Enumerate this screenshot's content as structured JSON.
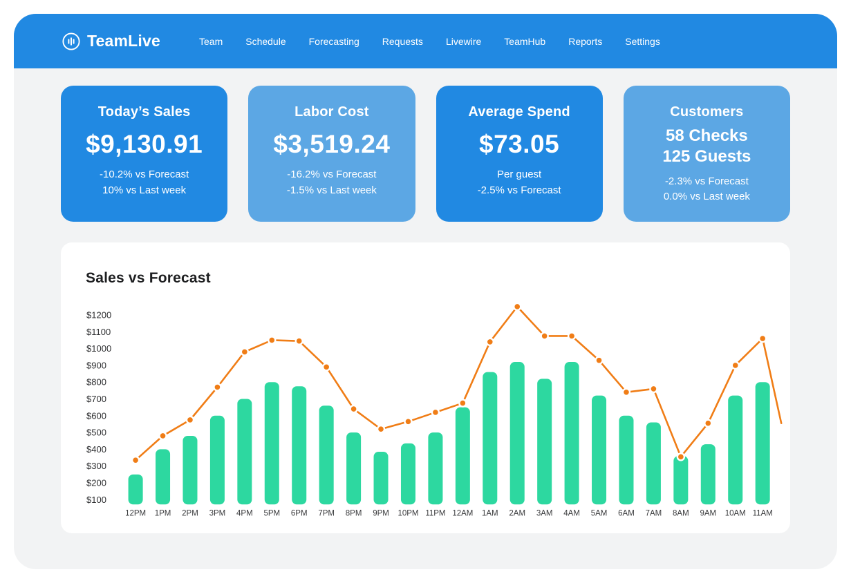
{
  "app": {
    "logo_text": "TeamLive"
  },
  "nav": {
    "items": [
      "Team",
      "Schedule",
      "Forecasting",
      "Requests",
      "Livewire",
      "TeamHub",
      "Reports",
      "Settings"
    ]
  },
  "cards": [
    {
      "title": "Today’s Sales",
      "primary": [
        "$9,130.91"
      ],
      "secondary": [
        "-10.2% vs Forecast",
        "10% vs Last week"
      ],
      "variant": "dark"
    },
    {
      "title": "Labor Cost",
      "primary": [
        "$3,519.24"
      ],
      "secondary": [
        "-16.2% vs Forecast",
        "-1.5% vs Last week"
      ],
      "variant": "light"
    },
    {
      "title": "Average Spend",
      "primary": [
        "$73.05"
      ],
      "secondary": [
        "Per guest",
        "-2.5% vs Forecast"
      ],
      "variant": "dark"
    },
    {
      "title": "Customers",
      "primary": [
        "58 Checks",
        "125 Guests"
      ],
      "secondary": [
        "-2.3% vs Forecast",
        "0.0% vs Last week"
      ],
      "variant": "light"
    }
  ],
  "colors": {
    "nav_blue": "#2189e2",
    "card_dark_blue": "#2189e2",
    "card_light_blue": "#5ca7e4",
    "body_gray": "#f2f3f4",
    "bar_green": "#2dd8a0",
    "line_orange": "#f07d16"
  },
  "chart_data": {
    "type": "bar",
    "title": "Sales vs Forecast",
    "categories": [
      "12PM",
      "1PM",
      "2PM",
      "3PM",
      "4PM",
      "5PM",
      "6PM",
      "7PM",
      "8PM",
      "9PM",
      "10PM",
      "11PM",
      "12AM",
      "1AM",
      "2AM",
      "3AM",
      "4AM",
      "5AM",
      "6AM",
      "7AM",
      "8AM",
      "9AM",
      "10AM",
      "11AM"
    ],
    "series": [
      {
        "name": "Sales",
        "type": "bar",
        "color": "#2dd8a0",
        "values": [
          250,
          400,
          480,
          600,
          700,
          800,
          775,
          660,
          500,
          385,
          435,
          500,
          650,
          860,
          920,
          820,
          920,
          720,
          600,
          560,
          360,
          430,
          720,
          800
        ]
      },
      {
        "name": "Forecast",
        "type": "line",
        "color": "#f07d16",
        "marker": "circle",
        "values": [
          335,
          480,
          575,
          770,
          980,
          1050,
          1045,
          890,
          640,
          520,
          565,
          620,
          675,
          1040,
          1250,
          1075,
          1075,
          930,
          740,
          760,
          355,
          555,
          900,
          1060
        ],
        "tail_value": 555
      }
    ],
    "xlabel": "",
    "ylabel": "",
    "y_tick_prefix": "$",
    "y_ticks": [
      100,
      200,
      300,
      400,
      500,
      600,
      700,
      800,
      900,
      1000,
      1100,
      1200
    ],
    "ylim": [
      100,
      1200
    ],
    "grid": false,
    "legend": false
  }
}
